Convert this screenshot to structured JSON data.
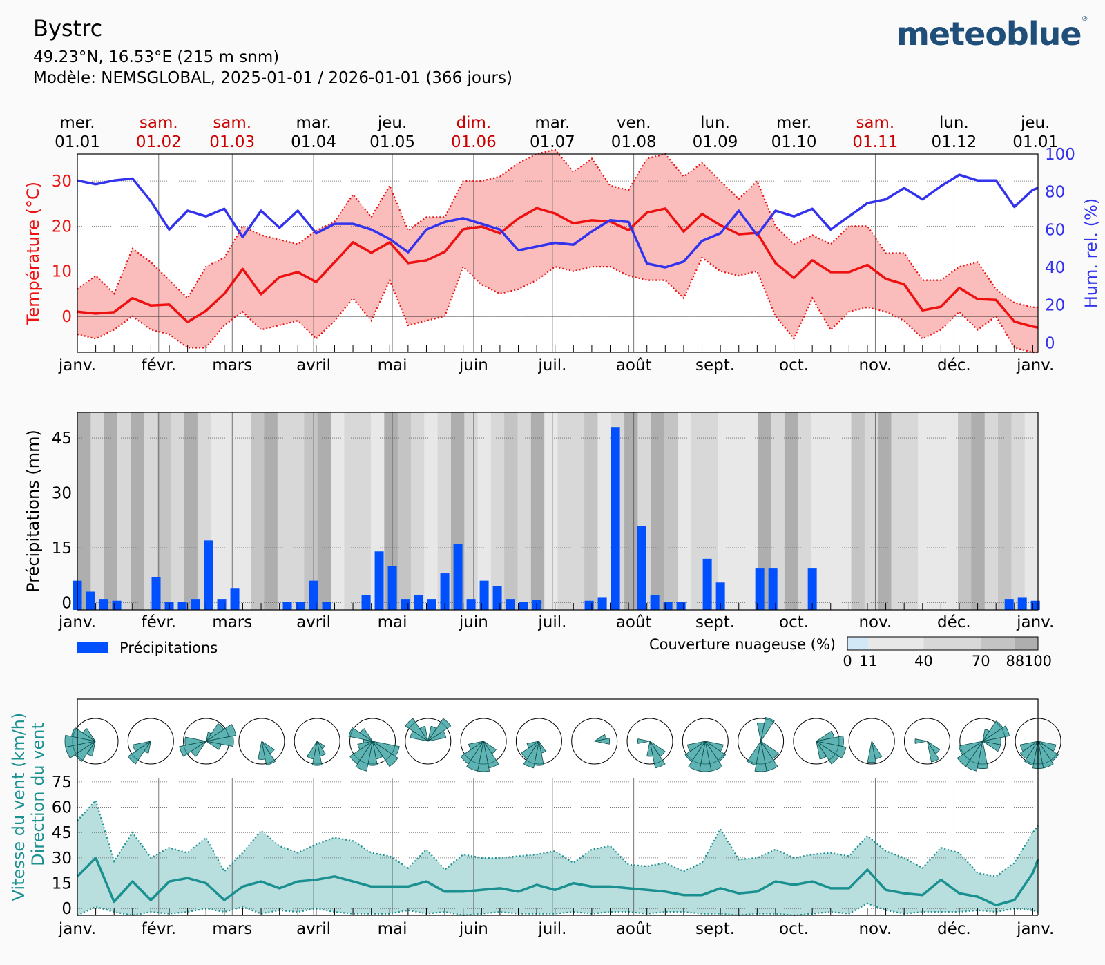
{
  "header": {
    "location": "Bystrc",
    "coordinates": "49.23°N, 16.53°E (215 m snm)",
    "model": "Modèle: NEMSGLOBAL, 2025-01-01 / 2026-01-01 (366 jours)",
    "logo": "meteoblue"
  },
  "top_dates": [
    {
      "day": "mer.",
      "date": "01.01",
      "weekend": false
    },
    {
      "day": "sam.",
      "date": "01.02",
      "weekend": true
    },
    {
      "day": "sam.",
      "date": "01.03",
      "weekend": true
    },
    {
      "day": "mar.",
      "date": "01.04",
      "weekend": false
    },
    {
      "day": "jeu.",
      "date": "01.05",
      "weekend": false
    },
    {
      "day": "dim.",
      "date": "01.06",
      "weekend": true
    },
    {
      "day": "mar.",
      "date": "01.07",
      "weekend": false
    },
    {
      "day": "ven.",
      "date": "01.08",
      "weekend": false
    },
    {
      "day": "lun.",
      "date": "01.09",
      "weekend": false
    },
    {
      "day": "mer.",
      "date": "01.10",
      "weekend": false
    },
    {
      "day": "sam.",
      "date": "01.11",
      "weekend": true
    },
    {
      "day": "lun.",
      "date": "01.12",
      "weekend": false
    },
    {
      "day": "jeu.",
      "date": "01.01",
      "weekend": false
    }
  ],
  "months": [
    "janv.",
    "févr.",
    "mars",
    "avril",
    "mai",
    "juin",
    "juil.",
    "août",
    "sept.",
    "oct.",
    "nov.",
    "déc.",
    "janv."
  ],
  "colors": {
    "temp": "#ee1111",
    "temp_fill": "#fbbcbc",
    "humidity": "#3333ee",
    "precip": "#0050ff",
    "wind": "#1a9090",
    "wind_fill": "#b9dede",
    "weekend": "#cc0000"
  },
  "chart_data": [
    {
      "type": "line",
      "id": "temperature-humidity",
      "ylabel": "Température (°C)",
      "y2label": "Hum. rel. (%)",
      "ylim": [
        -8,
        36
      ],
      "yticks": [
        0,
        10,
        20,
        30
      ],
      "y2lim": [
        -5,
        100
      ],
      "y2ticks": [
        0,
        20,
        40,
        60,
        80,
        100
      ],
      "x_days": [
        0,
        7,
        14,
        21,
        28,
        35,
        42,
        49,
        56,
        63,
        70,
        77,
        84,
        91,
        98,
        105,
        112,
        119,
        126,
        133,
        140,
        147,
        154,
        161,
        168,
        175,
        182,
        189,
        196,
        203,
        210,
        217,
        224,
        231,
        238,
        245,
        252,
        259,
        266,
        273,
        280,
        287,
        294,
        301,
        308,
        315,
        322,
        329,
        336,
        343,
        350,
        357,
        364,
        366
      ],
      "series": [
        {
          "name": "max",
          "values": [
            6,
            9,
            5,
            15,
            12,
            8,
            4,
            11,
            13,
            20,
            18,
            17,
            16,
            19,
            21,
            27,
            22,
            29,
            19,
            22,
            22,
            30,
            30,
            31,
            34,
            36,
            37,
            32,
            35,
            29,
            28,
            35,
            36,
            31,
            34,
            30,
            26,
            30,
            20,
            16,
            18,
            16,
            20,
            20,
            14,
            14,
            8,
            8,
            11,
            12,
            6,
            3,
            2,
            2
          ]
        },
        {
          "name": "mean",
          "values": [
            1,
            0.6,
            0.9,
            4,
            2.4,
            2.6,
            -1.3,
            1.2,
            5,
            10.5,
            4.9,
            8.7,
            9.8,
            7.6,
            12,
            16.4,
            14.1,
            16.4,
            11.8,
            12.4,
            14.3,
            19.3,
            19.9,
            18.4,
            21.7,
            24,
            22.8,
            20.6,
            21.3,
            21,
            19.1,
            23,
            23.9,
            18.8,
            22.7,
            20.2,
            18.2,
            18.5,
            11.8,
            8.5,
            12.4,
            9.8,
            9.8,
            11.4,
            8.3,
            7.1,
            1.3,
            2.1,
            6.3,
            3.8,
            3.6,
            -1.2,
            -2.3,
            -2.5
          ]
        },
        {
          "name": "min",
          "values": [
            -4,
            -5,
            -3,
            0,
            -3,
            -4,
            -7,
            -7,
            -2,
            1,
            -3,
            -2,
            -1,
            -5,
            -1,
            4,
            -1,
            8,
            -2,
            -1,
            0,
            11,
            7,
            5,
            6,
            8,
            11,
            10,
            11,
            11,
            9,
            8,
            8,
            4,
            13,
            10,
            9,
            10,
            0,
            -5,
            4,
            -3,
            1,
            2,
            1,
            -1,
            -5,
            -3,
            1,
            -3,
            0,
            -7,
            -8,
            -8
          ]
        },
        {
          "name": "humidity",
          "values": [
            86,
            84,
            86,
            87,
            75,
            60,
            70,
            67,
            71,
            56,
            70,
            61,
            70,
            58,
            63,
            63,
            60,
            55,
            48,
            60,
            64,
            66,
            63,
            60,
            49,
            51,
            53,
            52,
            59,
            65,
            64,
            42,
            40,
            43,
            54,
            58,
            70,
            57,
            70,
            67,
            71,
            60,
            67,
            74,
            76,
            82,
            76,
            83,
            89,
            86,
            86,
            72,
            81,
            82
          ]
        }
      ]
    },
    {
      "type": "bar",
      "id": "precipitation",
      "ylabel": "Précipitations (mm)",
      "ylim": [
        -2,
        52
      ],
      "yticks": [
        0,
        15,
        30,
        45
      ],
      "days": [
        0,
        5,
        10,
        15,
        30,
        35,
        40,
        45,
        50,
        55,
        60,
        65,
        70,
        75,
        80,
        85,
        90,
        95,
        100,
        105,
        110,
        115,
        120,
        125,
        130,
        135,
        140,
        145,
        150,
        155,
        160,
        165,
        170,
        175,
        180,
        185,
        190,
        195,
        200,
        205,
        210,
        215,
        220,
        225,
        230,
        235,
        240,
        245,
        250,
        255,
        260,
        265,
        270,
        275,
        280,
        285,
        290,
        295,
        300,
        305,
        310,
        315,
        320,
        325,
        330,
        335,
        340,
        345,
        350,
        355,
        360,
        365
      ],
      "values": [
        6,
        3,
        1,
        0.5,
        7,
        0.1,
        0.1,
        1,
        17,
        1,
        4,
        0,
        0,
        0,
        0.2,
        0.2,
        6,
        0.2,
        0,
        0,
        2,
        14,
        10,
        1,
        2,
        1,
        8,
        16,
        1,
        6,
        4.5,
        1,
        0.1,
        0.8,
        0,
        0,
        0,
        0.5,
        1.5,
        48,
        0,
        21,
        2,
        0.1,
        0.1,
        0,
        12,
        5.5,
        0,
        0,
        9.5,
        9.5,
        0,
        0,
        9.5,
        0,
        0,
        0,
        0,
        0,
        0,
        0,
        0,
        0,
        0,
        0,
        0,
        0,
        0,
        1,
        1.5,
        0.5
      ],
      "legend": "Précipitations",
      "cloud_legend_title": "Couverture nuageuse (%)",
      "cloud_legend_ticks": [
        "0",
        "11",
        "40",
        "70",
        "88",
        "100"
      ],
      "cloud_legend_colors": [
        "#d3e8f7",
        "#e8e8e8",
        "#d8d8d8",
        "#c4c4c4",
        "#aeaeae"
      ],
      "cloud_cover": [
        88,
        60,
        88,
        40,
        88,
        60,
        70,
        40,
        88,
        60,
        11,
        11,
        11,
        70,
        88,
        60,
        40,
        70,
        88,
        11,
        40,
        60,
        11,
        88,
        70,
        40,
        11,
        60,
        88,
        60,
        11,
        40,
        70,
        40,
        88,
        11,
        40,
        60,
        70,
        11,
        40,
        88,
        60,
        88,
        70,
        11,
        40,
        60,
        11,
        11,
        11,
        88,
        40,
        88,
        60,
        11,
        11,
        11,
        70,
        40,
        88,
        60,
        40,
        11,
        11,
        11,
        70,
        88,
        60,
        70,
        40,
        11
      ]
    },
    {
      "type": "line",
      "id": "wind",
      "ylabel": "Vitesse du vent (km/h)",
      "ylabel2": "Direction du vent",
      "ylim": [
        -4,
        77
      ],
      "yticks": [
        0,
        15,
        30,
        45,
        60,
        75
      ],
      "x_days": [
        0,
        7,
        14,
        21,
        28,
        35,
        42,
        49,
        56,
        63,
        70,
        77,
        84,
        91,
        98,
        105,
        112,
        119,
        126,
        133,
        140,
        147,
        154,
        161,
        168,
        175,
        182,
        189,
        196,
        203,
        210,
        217,
        224,
        231,
        238,
        245,
        252,
        259,
        266,
        273,
        280,
        287,
        294,
        301,
        308,
        315,
        322,
        329,
        336,
        343,
        350,
        357,
        364,
        366
      ],
      "series": [
        {
          "name": "max",
          "values": [
            52,
            64,
            28,
            45,
            30,
            36,
            33,
            42,
            22,
            33,
            46,
            37,
            33,
            38,
            42,
            40,
            33,
            31,
            24,
            35,
            23,
            32,
            30,
            30,
            31,
            32,
            34,
            27,
            35,
            37,
            26,
            25,
            27,
            22,
            27,
            47,
            29,
            30,
            35,
            30,
            32,
            33,
            31,
            43,
            34,
            30,
            24,
            36,
            33,
            21,
            19,
            27,
            45,
            49
          ]
        },
        {
          "name": "mean",
          "values": [
            19,
            30,
            4,
            16,
            5,
            16,
            18,
            15,
            5,
            13,
            16,
            12,
            16,
            17,
            19,
            16,
            13,
            13,
            13,
            16,
            10,
            10,
            11,
            12,
            10,
            14,
            11,
            15,
            13,
            13,
            12,
            11,
            10,
            8,
            8,
            12,
            9,
            10,
            16,
            14,
            16,
            12,
            12,
            23,
            11,
            9,
            8,
            17,
            9,
            7,
            2,
            5,
            21,
            29
          ]
        },
        {
          "name": "min",
          "values": [
            -4,
            1,
            -2,
            -4,
            -2,
            -3,
            -2,
            0,
            -2,
            1,
            -3,
            -1,
            -2,
            0,
            -2,
            -3,
            -3,
            -3,
            -1,
            -3,
            -2,
            -4,
            -3,
            -2,
            -3,
            -3,
            -3,
            -2,
            -3,
            -2,
            -2,
            -3,
            -2,
            -2,
            -3,
            -3,
            -4,
            -3,
            -3,
            -4,
            -3,
            -2,
            -3,
            3,
            -1,
            -3,
            -2,
            -2,
            -2,
            -1,
            -2,
            0,
            -1,
            -2
          ]
        }
      ],
      "wind_roses": [
        {
          "sectors": [
            0,
            0,
            0,
            0,
            0,
            0,
            0,
            0,
            0,
            0.5,
            0.8,
            1,
            1,
            0.8,
            0.5,
            0
          ]
        },
        {
          "sectors": [
            0,
            0,
            0,
            0,
            0,
            0,
            0,
            0,
            0,
            0.4,
            0.9,
            0.6,
            0,
            0,
            0,
            0
          ]
        },
        {
          "sectors": [
            0,
            0.3,
            0.7,
            1,
            0.9,
            0.5,
            0,
            0,
            0,
            0,
            0.6,
            0.9,
            0.7,
            0,
            0,
            0
          ]
        },
        {
          "sectors": [
            0,
            0,
            0,
            0,
            0,
            0,
            0.5,
            0.8,
            0.6,
            0,
            0,
            0,
            0,
            0,
            0,
            0
          ]
        },
        {
          "sectors": [
            0,
            0,
            0,
            0,
            0,
            0,
            0.3,
            0.5,
            0.8,
            0.6,
            0,
            0,
            0,
            0,
            0,
            0
          ]
        },
        {
          "sectors": [
            0,
            0,
            0,
            0,
            0,
            0.9,
            1,
            0.6,
            0.8,
            1,
            0.9,
            0.5,
            0.3,
            0.8,
            0.5,
            0
          ]
        },
        {
          "sectors": [
            0,
            0.5,
            0.9,
            0.6,
            0,
            0,
            0,
            0,
            0,
            0,
            0,
            0,
            0,
            0.6,
            0.9,
            0.5
          ]
        },
        {
          "sectors": [
            0,
            0,
            0,
            0,
            0,
            0,
            0.5,
            0.9,
            1,
            1,
            0.9,
            0.5,
            0,
            0,
            0,
            0
          ]
        },
        {
          "sectors": [
            0,
            0,
            0,
            0,
            0,
            0,
            0,
            0.4,
            0.8,
            0.9,
            0.7,
            0.4,
            0,
            0,
            0,
            0
          ]
        },
        {
          "sectors": [
            0,
            0,
            0,
            0.4,
            0.5,
            0,
            0,
            0,
            0,
            0,
            0,
            0,
            0,
            0,
            0,
            0
          ]
        },
        {
          "sectors": [
            0,
            0,
            0,
            0,
            0,
            0,
            0.6,
            0.9,
            0.5,
            0,
            0,
            0,
            0.4,
            0,
            0,
            0
          ]
        },
        {
          "sectors": [
            0,
            0,
            0,
            0,
            0,
            0.6,
            0.8,
            1,
            1,
            1,
            0.8,
            0.6,
            0,
            0,
            0,
            0
          ]
        },
        {
          "sectors": [
            0.6,
            0.8,
            0,
            0,
            0,
            0,
            0.7,
            1,
            1,
            0.8,
            0,
            0,
            0,
            0,
            0,
            0
          ]
        },
        {
          "sectors": [
            0,
            0,
            0,
            0.6,
            0.9,
            1,
            0.9,
            0.6,
            0,
            0,
            0,
            0,
            0,
            0,
            0,
            0
          ]
        },
        {
          "sectors": [
            0,
            0,
            0,
            0,
            0,
            0,
            0,
            0.6,
            0.7,
            0,
            0,
            0,
            0,
            0,
            0,
            0
          ]
        },
        {
          "sectors": [
            0,
            0,
            0,
            0,
            0,
            0,
            0.5,
            0.7,
            0,
            0,
            0,
            0,
            0.4,
            0,
            0,
            0
          ]
        },
        {
          "sectors": [
            0,
            0.4,
            0.8,
            0.9,
            0.6,
            0.6,
            0,
            0,
            0.9,
            1,
            1,
            0.8,
            0,
            0,
            0,
            0
          ]
        },
        {
          "sectors": [
            0,
            0,
            0,
            0,
            0,
            0.6,
            0.8,
            0.9,
            0.9,
            0.8,
            0.7,
            0.6,
            0,
            0,
            0,
            0
          ]
        }
      ]
    }
  ]
}
